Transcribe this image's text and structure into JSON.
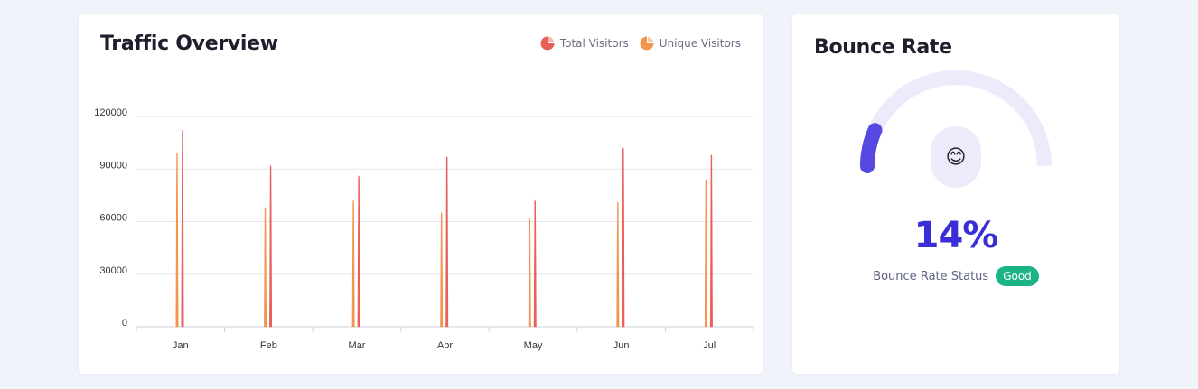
{
  "traffic": {
    "title": "Traffic Overview",
    "legend": [
      {
        "label": "Total Visitors",
        "color": "#e8605a",
        "icon": "pie-icon"
      },
      {
        "label": "Unique Visitors",
        "color": "#f1964f",
        "icon": "pie-icon"
      }
    ]
  },
  "chart_data": {
    "type": "bar",
    "categories": [
      "Jan",
      "Feb",
      "Mar",
      "Apr",
      "May",
      "Jun",
      "Jul"
    ],
    "series": [
      {
        "name": "Unique Visitors",
        "color": "#f1964f",
        "values": [
          99000,
          68000,
          72000,
          65000,
          62000,
          71000,
          84000
        ]
      },
      {
        "name": "Total Visitors",
        "color": "#e8605a",
        "values": [
          112000,
          92000,
          86000,
          97000,
          72000,
          102000,
          98000
        ]
      }
    ],
    "ylim": [
      0,
      120000
    ],
    "yticks": [
      0,
      30000,
      60000,
      90000,
      120000
    ],
    "grid": true,
    "legend": "top-right"
  },
  "bounce": {
    "title": "Bounce Rate",
    "value_text": "14%",
    "value": 14,
    "status_label": "Bounce Rate Status",
    "status_badge": "Good",
    "status_icon": "smiling-face-icon",
    "status_emoji": "😊",
    "gauge_color": "#5648e1",
    "track_color": "#ecebfb",
    "badge_color": "#1bb486"
  }
}
